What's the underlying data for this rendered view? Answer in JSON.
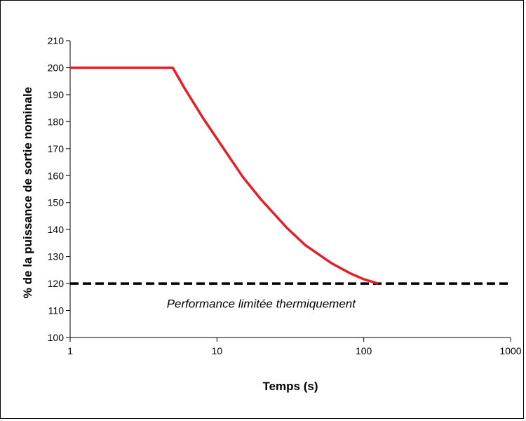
{
  "chart_data": {
    "type": "line",
    "title": "",
    "xlabel": "Temps (s)",
    "ylabel": "% de la puissance de sortie nominale",
    "x_scale": "log",
    "xlim": [
      1,
      1000
    ],
    "ylim": [
      100,
      210
    ],
    "x_ticks": [
      1,
      10,
      100,
      1000
    ],
    "x_tick_labels": [
      "1",
      "10",
      "100",
      "1000"
    ],
    "y_ticks": [
      100,
      110,
      120,
      130,
      140,
      150,
      160,
      170,
      180,
      190,
      200,
      210
    ],
    "y_tick_labels": [
      "100",
      "110",
      "120",
      "130",
      "140",
      "150",
      "160",
      "170",
      "180",
      "190",
      "200",
      "210"
    ],
    "grid": false,
    "legend": "none",
    "series": [
      {
        "style": "solid",
        "color": "#e3202a",
        "x": [
          1,
          5,
          6,
          8,
          10,
          15,
          20,
          30,
          40,
          60,
          80,
          100,
          125
        ],
        "y": [
          200,
          200,
          192.5,
          181.5,
          173.7,
          159.5,
          151.1,
          140.6,
          134.2,
          127.6,
          123.9,
          121.6,
          120
        ]
      },
      {
        "style": "dashed",
        "color": "#000000",
        "x": [
          1,
          1000
        ],
        "y": [
          120,
          120
        ]
      }
    ],
    "annotations": [
      {
        "text": "Performance limitée thermiquement",
        "x": 20,
        "y": 111
      }
    ]
  }
}
